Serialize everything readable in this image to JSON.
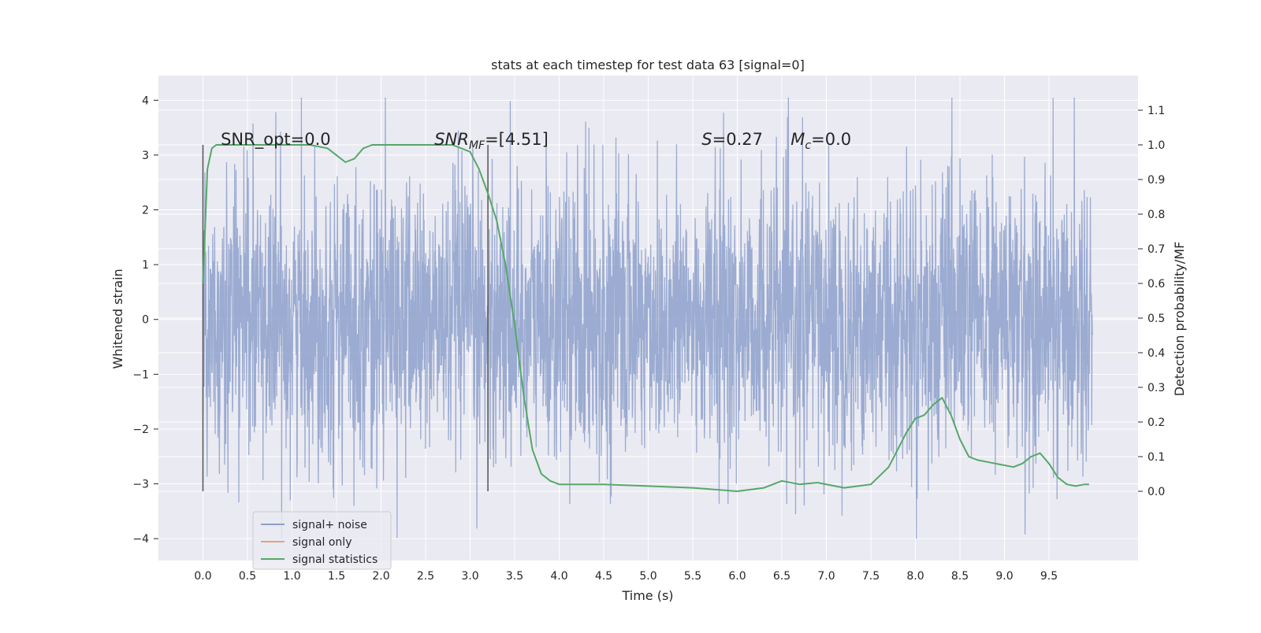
{
  "chart_data": {
    "type": "line",
    "title": "stats at each timestep for test data 63 [signal=0]",
    "xlabel": "Time (s)",
    "ylabel": "Whitened strain",
    "y2label": "Detection probability/MF",
    "xlim": [
      -0.5,
      10.5
    ],
    "ylim": [
      -4.4,
      4.45
    ],
    "y2lim": [
      -0.2,
      1.2
    ],
    "x_ticks": [
      0.0,
      0.5,
      1.0,
      1.5,
      2.0,
      2.5,
      3.0,
      3.5,
      4.0,
      4.5,
      5.0,
      5.5,
      6.0,
      6.5,
      7.0,
      7.5,
      8.0,
      8.5,
      9.0,
      9.5
    ],
    "x_tick_labels": [
      "0.0",
      "0.5",
      "1.0",
      "1.5",
      "2.0",
      "2.5",
      "3.0",
      "3.5",
      "4.0",
      "4.5",
      "5.0",
      "5.5",
      "6.0",
      "6.5",
      "7.0",
      "7.5",
      "8.0",
      "8.5",
      "9.0",
      "9.5"
    ],
    "y_ticks": [
      4,
      3,
      2,
      1,
      0,
      -1,
      -2,
      -3,
      -4
    ],
    "y_tick_labels": [
      "4",
      "3",
      "2",
      "1",
      "0",
      "−1",
      "−2",
      "−3",
      "−4"
    ],
    "y2_ticks": [
      1.1,
      1.0,
      0.9,
      0.8,
      0.7,
      0.6,
      0.5,
      0.4,
      0.3,
      0.2,
      0.1,
      0.0
    ],
    "y2_tick_labels": [
      "1.1",
      "1.0",
      "0.9",
      "0.8",
      "0.7",
      "0.6",
      "0.5",
      "0.4",
      "0.3",
      "0.2",
      "0.1",
      "0.0"
    ],
    "grid": true,
    "legend_position": "lower-left",
    "series": [
      {
        "name": "signal+ noise",
        "color": "#8da0cb",
        "axis": "left",
        "style": "noise",
        "x_range": [
          0.0,
          9.99
        ],
        "envelope_1sigma": 1.27,
        "min": -4.0,
        "max": 4.05
      },
      {
        "name": "signal only",
        "color": "#e1a387",
        "axis": "left",
        "x": [],
        "y": []
      },
      {
        "name": "signal statistics",
        "color": "#55a868",
        "axis": "right",
        "x": [
          0.0,
          0.05,
          0.1,
          0.15,
          0.2,
          0.3,
          0.5,
          0.8,
          1.0,
          1.2,
          1.4,
          1.5,
          1.6,
          1.7,
          1.8,
          1.9,
          2.0,
          2.2,
          2.5,
          2.8,
          3.0,
          3.1,
          3.2,
          3.3,
          3.4,
          3.5,
          3.6,
          3.7,
          3.8,
          3.9,
          4.0,
          4.2,
          4.5,
          5.0,
          5.5,
          6.0,
          6.3,
          6.5,
          6.7,
          6.9,
          7.2,
          7.5,
          7.7,
          7.9,
          8.0,
          8.1,
          8.2,
          8.3,
          8.4,
          8.5,
          8.6,
          8.7,
          8.9,
          9.1,
          9.2,
          9.3,
          9.4,
          9.5,
          9.6,
          9.7,
          9.8,
          9.9,
          9.95
        ],
        "y": [
          0.6,
          0.93,
          0.99,
          1.0,
          1.0,
          1.0,
          1.0,
          1.0,
          1.0,
          1.0,
          0.99,
          0.97,
          0.95,
          0.96,
          0.99,
          1.0,
          1.0,
          1.0,
          1.0,
          1.0,
          0.98,
          0.93,
          0.86,
          0.78,
          0.65,
          0.48,
          0.28,
          0.12,
          0.05,
          0.03,
          0.02,
          0.02,
          0.02,
          0.015,
          0.01,
          0.0,
          0.01,
          0.03,
          0.02,
          0.025,
          0.01,
          0.02,
          0.07,
          0.17,
          0.21,
          0.22,
          0.25,
          0.27,
          0.22,
          0.15,
          0.1,
          0.09,
          0.08,
          0.07,
          0.08,
          0.1,
          0.11,
          0.08,
          0.04,
          0.02,
          0.015,
          0.02,
          0.02
        ]
      }
    ],
    "vertical_lines": [
      0.0,
      3.2
    ],
    "vline_color": "#555555",
    "annotations": [
      {
        "key": "snr_opt",
        "text": "SNR_opt=0.0",
        "x": 0.2,
        "y": 1.0
      },
      {
        "key": "snr_mf",
        "base": "SNR",
        "sub": "MF",
        "rest": "=[4.51]",
        "x": 2.6,
        "y": 1.0
      },
      {
        "key": "s_stat",
        "base": "S",
        "rest": "=0.27",
        "x": 5.6,
        "y": 1.0
      },
      {
        "key": "mchirp",
        "base": "M",
        "sub": "c",
        "rest": "=0.0",
        "x": 6.6,
        "y": 1.0
      }
    ],
    "colors": {
      "plot_background": "#eaeaf2",
      "grid": "#ffffff",
      "text": "#262626"
    }
  }
}
